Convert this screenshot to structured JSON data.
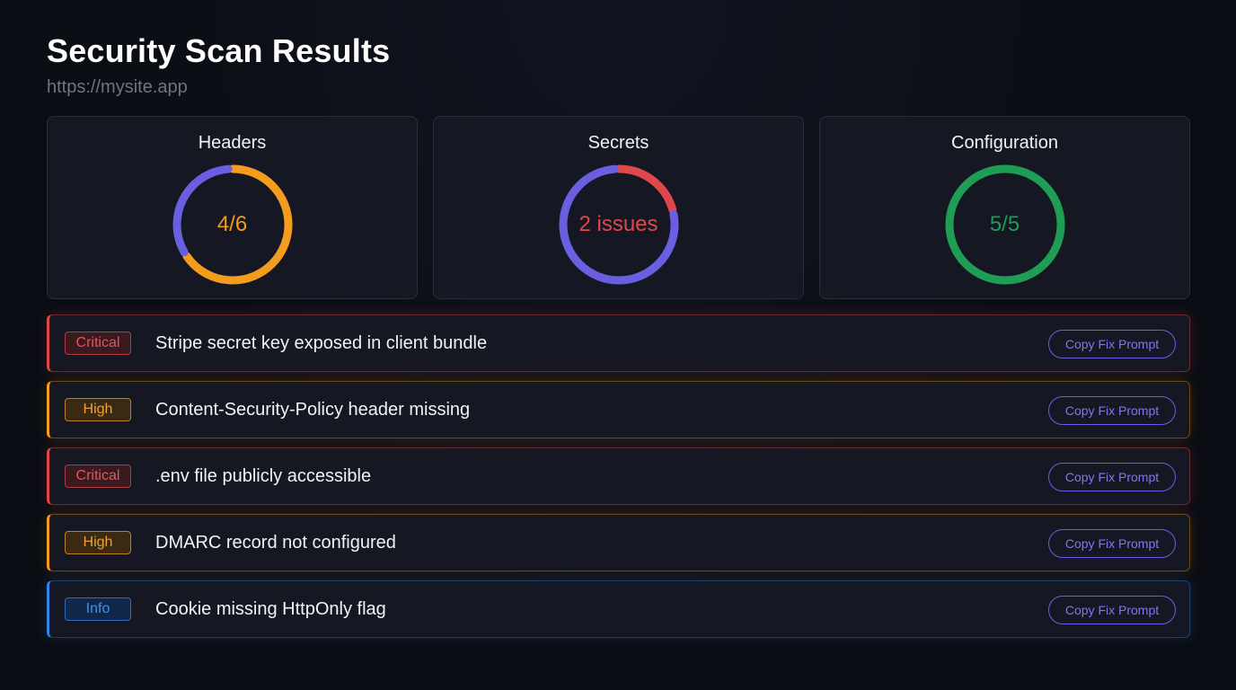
{
  "header": {
    "title": "Security Scan Results",
    "url": "https://mysite.app"
  },
  "colors": {
    "accent": "#6a5fe0",
    "critical": "#e0474c",
    "high": "#f39c1d",
    "info": "#2f86e8",
    "pass": "#1f9d55"
  },
  "cards": [
    {
      "title": "Headers",
      "value": "4/6",
      "value_color": "#f39c1d",
      "segments": [
        {
          "fraction": 0.667,
          "color": "#f39c1d"
        },
        {
          "fraction": 0.333,
          "color": "#6a5fe0"
        }
      ]
    },
    {
      "title": "Secrets",
      "value": "2 issues",
      "value_color": "#e0474c",
      "segments": [
        {
          "fraction": 0.22,
          "color": "#e0474c"
        },
        {
          "fraction": 0.78,
          "color": "#6a5fe0"
        }
      ]
    },
    {
      "title": "Configuration",
      "value": "5/5",
      "value_color": "#1f9d55",
      "segments": [
        {
          "fraction": 1.0,
          "color": "#1f9d55"
        }
      ]
    }
  ],
  "findings": [
    {
      "severity": "critical",
      "badge": "Critical",
      "text": "Stripe secret key exposed in client bundle",
      "action": "Copy Fix Prompt"
    },
    {
      "severity": "high",
      "badge": "High",
      "text": "Content-Security-Policy header missing",
      "action": "Copy Fix Prompt"
    },
    {
      "severity": "critical",
      "badge": "Critical",
      "text": ".env file publicly accessible",
      "action": "Copy Fix Prompt"
    },
    {
      "severity": "high",
      "badge": "High",
      "text": "DMARC record not configured",
      "action": "Copy Fix Prompt"
    },
    {
      "severity": "info",
      "badge": "Info",
      "text": "Cookie missing HttpOnly flag",
      "action": "Copy Fix Prompt"
    }
  ]
}
